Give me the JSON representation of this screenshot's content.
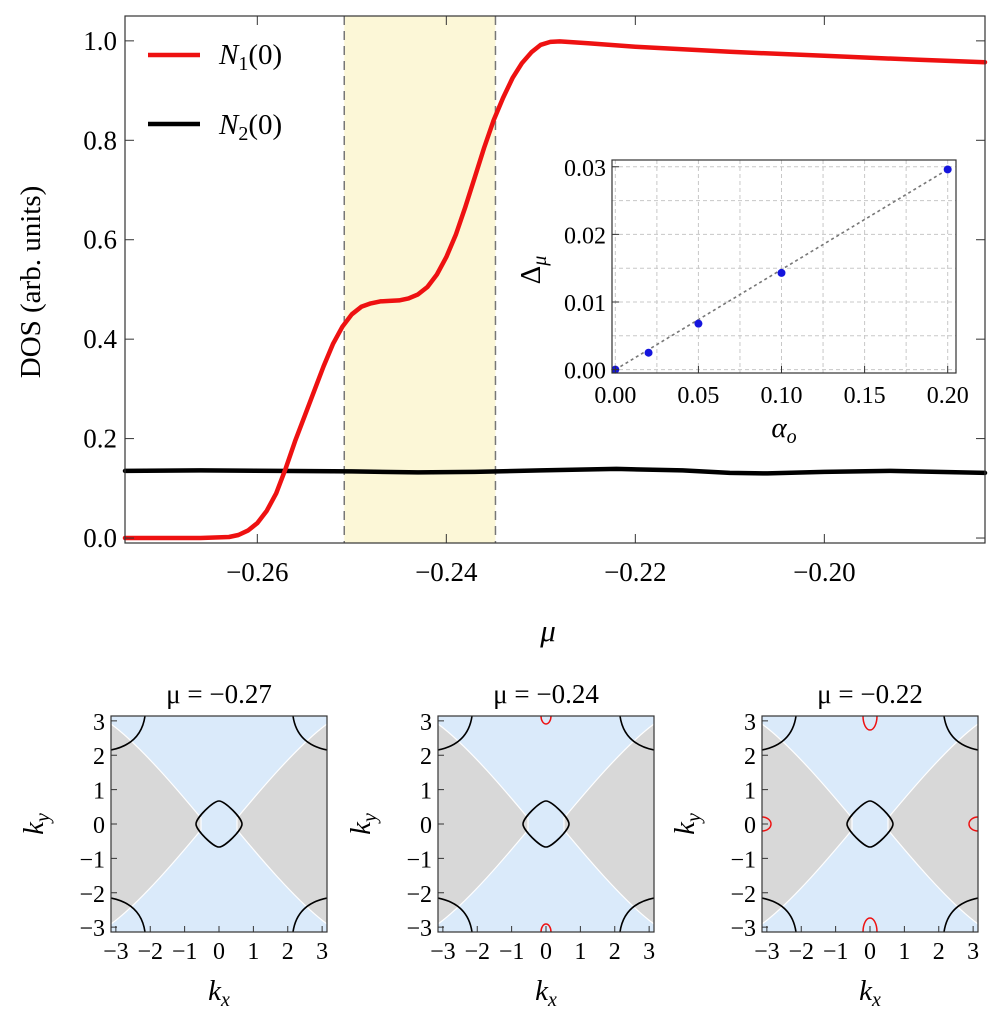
{
  "chart_data": [
    {
      "type": "line",
      "ylabel": "DOS (arb. units)",
      "xlabel": "μ",
      "xlim": [
        -0.274,
        -0.183
      ],
      "ylim": [
        -0.01,
        1.05
      ],
      "x_ticks": [
        "−0.26",
        "−0.24",
        "−0.22",
        "−0.20"
      ],
      "x_tick_values": [
        -0.26,
        -0.24,
        -0.22,
        -0.2
      ],
      "y_ticks": [
        "0.0",
        "0.2",
        "0.4",
        "0.6",
        "0.8",
        "1.0"
      ],
      "y_tick_values": [
        0.0,
        0.2,
        0.4,
        0.6,
        0.8,
        1.0
      ],
      "legend_position": "top-left",
      "shaded_region": {
        "x": [
          -0.2508,
          -0.2348
        ],
        "color": "#fcf7d7"
      },
      "series": [
        {
          "name": "N1(0)",
          "legend_main": "N",
          "legend_sub": "1",
          "legend_tail": "(0)",
          "color": "#ee1111",
          "x": [
            -0.274,
            -0.266,
            -0.263,
            -0.262,
            -0.261,
            -0.26,
            -0.259,
            -0.258,
            -0.257,
            -0.256,
            -0.255,
            -0.254,
            -0.253,
            -0.252,
            -0.251,
            -0.25,
            -0.249,
            -0.248,
            -0.247,
            -0.246,
            -0.245,
            -0.244,
            -0.243,
            -0.242,
            -0.241,
            -0.24,
            -0.239,
            -0.238,
            -0.237,
            -0.236,
            -0.235,
            -0.234,
            -0.233,
            -0.232,
            -0.231,
            -0.23,
            -0.229,
            -0.228,
            -0.225,
            -0.22,
            -0.21,
            -0.2,
            -0.19,
            -0.183
          ],
          "y": [
            0.0,
            0.0,
            0.002,
            0.006,
            0.015,
            0.03,
            0.055,
            0.09,
            0.14,
            0.195,
            0.245,
            0.295,
            0.345,
            0.39,
            0.425,
            0.45,
            0.465,
            0.472,
            0.476,
            0.477,
            0.478,
            0.482,
            0.49,
            0.505,
            0.53,
            0.565,
            0.61,
            0.665,
            0.725,
            0.785,
            0.84,
            0.885,
            0.925,
            0.955,
            0.977,
            0.992,
            0.998,
            0.999,
            0.995,
            0.988,
            0.978,
            0.97,
            0.962,
            0.957
          ]
        },
        {
          "name": "N2(0)",
          "legend_main": "N",
          "legend_sub": "2",
          "legend_tail": "(0)",
          "color": "#000000",
          "x": [
            -0.274,
            -0.266,
            -0.258,
            -0.25,
            -0.243,
            -0.237,
            -0.23,
            -0.222,
            -0.215,
            -0.21,
            -0.206,
            -0.2,
            -0.193,
            -0.188,
            -0.183
          ],
          "y": [
            0.135,
            0.136,
            0.135,
            0.134,
            0.132,
            0.133,
            0.136,
            0.139,
            0.136,
            0.131,
            0.13,
            0.133,
            0.135,
            0.133,
            0.131
          ]
        }
      ]
    },
    {
      "type": "scatter",
      "xlabel": "α",
      "xlabel_sub": "o",
      "ylabel": "Δ",
      "ylabel_sub": "μ",
      "xlim": [
        -0.002,
        0.205
      ],
      "ylim": [
        -0.0005,
        0.031
      ],
      "x_ticks": [
        "0.00",
        "0.05",
        "0.10",
        "0.15",
        "0.20"
      ],
      "x_tick_values": [
        0.0,
        0.05,
        0.1,
        0.15,
        0.2
      ],
      "y_ticks": [
        "0.00",
        "0.01",
        "0.02",
        "0.03"
      ],
      "y_tick_values": [
        0.0,
        0.01,
        0.02,
        0.03
      ],
      "grid": true,
      "fit_line": {
        "x": [
          0.0,
          0.2
        ],
        "y": [
          0.0,
          0.0296
        ],
        "style": "dotted",
        "color": "#777777"
      },
      "points": {
        "color": "#1515dd",
        "x": [
          0.0,
          0.02,
          0.05,
          0.1,
          0.2
        ],
        "y": [
          0.0,
          0.0025,
          0.0068,
          0.0143,
          0.0296
        ]
      }
    },
    {
      "type": "contour",
      "title": "μ = −0.27",
      "xlabel": "k",
      "xlabel_sub": "x",
      "ylabel": "k",
      "ylabel_sub": "y",
      "xlim": [
        -3.1416,
        3.1416
      ],
      "ylim": [
        -3.1416,
        3.1416
      ],
      "x_ticks": [
        "−3",
        "−2",
        "−1",
        "0",
        "1",
        "2",
        "3"
      ],
      "y_ticks": [
        "3",
        "2",
        "1",
        "0",
        "−1",
        "−2",
        "−3"
      ],
      "tick_values": [
        -3,
        -2,
        -1,
        0,
        1,
        2,
        3
      ],
      "region_colors": {
        "background": "#daeafa",
        "wedge": "#d8d8d8"
      },
      "red_pockets": false
    },
    {
      "type": "contour",
      "title": "μ = −0.24",
      "xlabel": "k",
      "xlabel_sub": "x",
      "ylabel": "k",
      "ylabel_sub": "y",
      "xlim": [
        -3.1416,
        3.1416
      ],
      "ylim": [
        -3.1416,
        3.1416
      ],
      "x_ticks": [
        "−3",
        "−2",
        "−1",
        "0",
        "1",
        "2",
        "3"
      ],
      "y_ticks": [
        "3",
        "2",
        "1",
        "0",
        "−1",
        "−2",
        "−3"
      ],
      "tick_values": [
        -3,
        -2,
        -1,
        0,
        1,
        2,
        3
      ],
      "region_colors": {
        "background": "#daeafa",
        "wedge": "#d8d8d8"
      },
      "red_pockets": "small"
    },
    {
      "type": "contour",
      "title": "μ = −0.22",
      "xlabel": "k",
      "xlabel_sub": "x",
      "ylabel": "k",
      "ylabel_sub": "y",
      "xlim": [
        -3.1416,
        3.1416
      ],
      "ylim": [
        -3.1416,
        3.1416
      ],
      "x_ticks": [
        "−3",
        "−2",
        "−1",
        "0",
        "1",
        "2",
        "3"
      ],
      "y_ticks": [
        "3",
        "2",
        "1",
        "0",
        "−1",
        "−2",
        "−3"
      ],
      "tick_values": [
        -3,
        -2,
        -1,
        0,
        1,
        2,
        3
      ],
      "region_colors": {
        "background": "#daeafa",
        "wedge": "#d8d8d8"
      },
      "red_pockets": "large"
    }
  ]
}
